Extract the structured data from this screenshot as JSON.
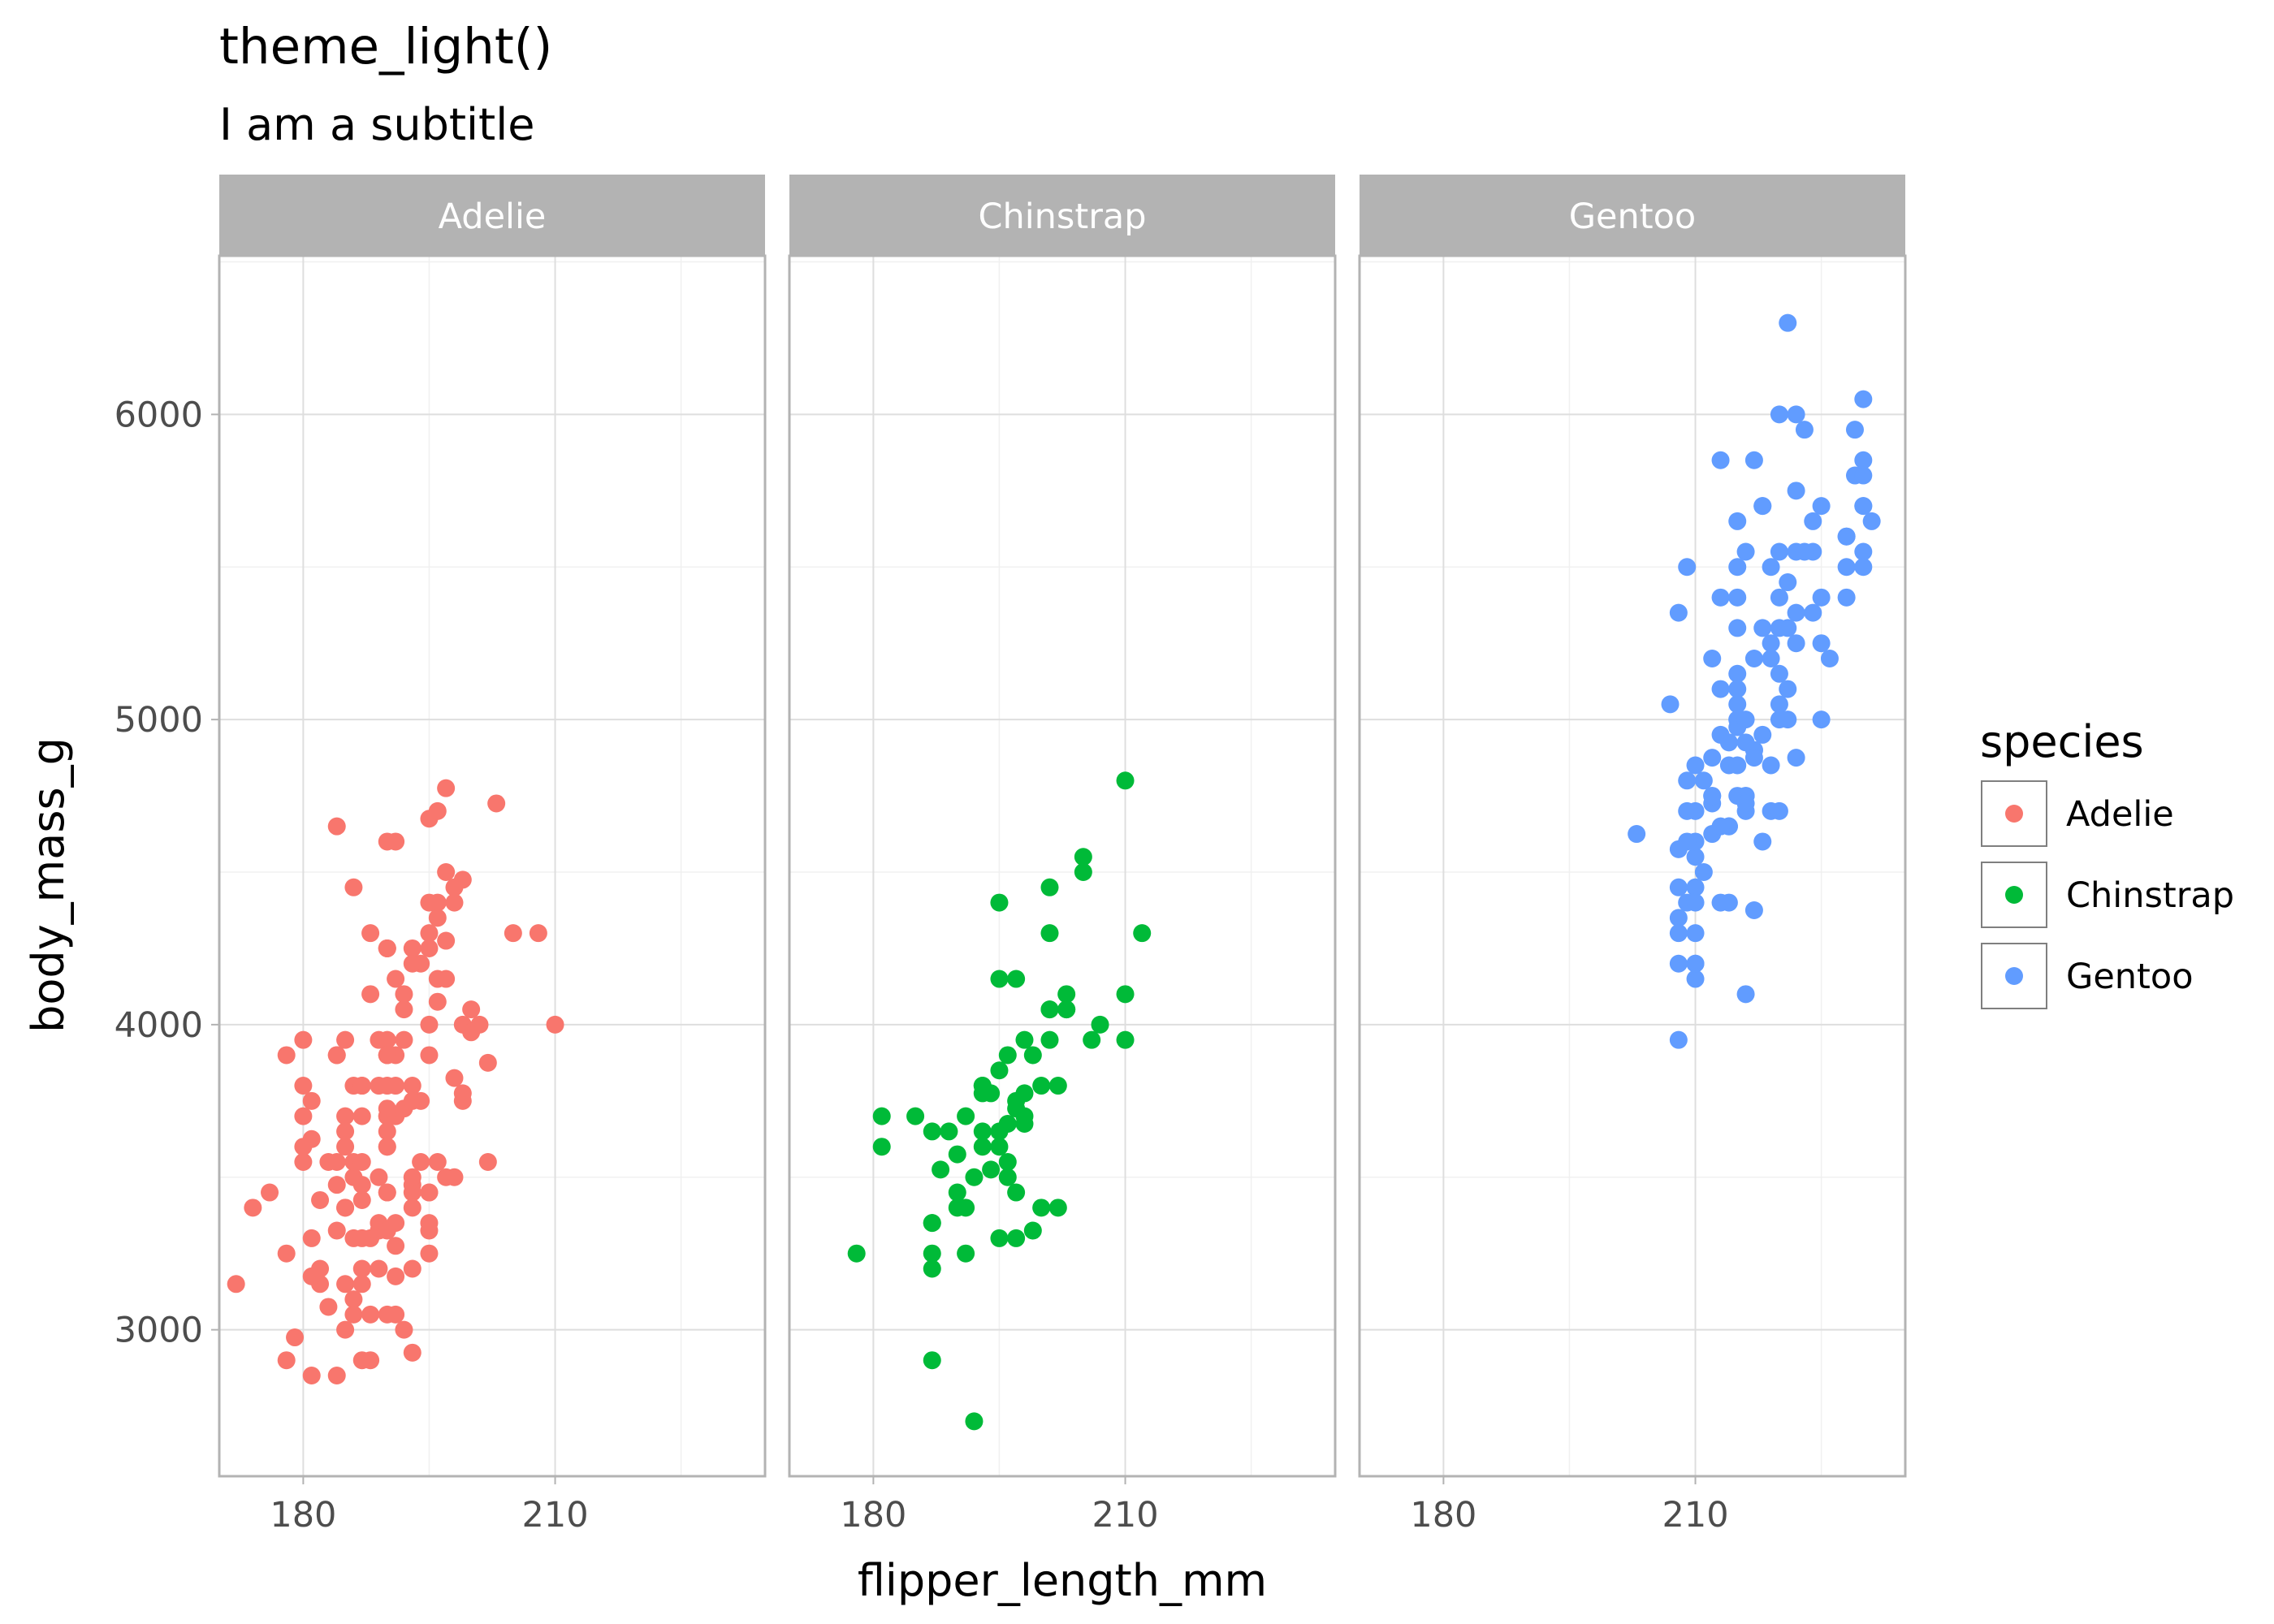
{
  "chart_data": {
    "type": "scatter",
    "title": "theme_light()",
    "subtitle": "I am a subtitle",
    "xlabel": "flipper_length_mm",
    "ylabel": "body_mass_g",
    "xlim": [
      170,
      235
    ],
    "ylim": [
      2520,
      6520
    ],
    "x_ticks": [
      180,
      210
    ],
    "y_ticks": [
      3000,
      4000,
      5000,
      6000
    ],
    "grid": true,
    "legend": {
      "title": "species",
      "position": "right",
      "entries": [
        "Adelie",
        "Chinstrap",
        "Gentoo"
      ]
    },
    "facets": [
      {
        "name": "Adelie",
        "color": "#F8766D",
        "x": [
          181,
          186,
          195,
          193,
          190,
          181,
          195,
          193,
          190,
          186,
          180,
          182,
          191,
          198,
          185,
          195,
          197,
          184,
          194,
          174,
          180,
          189,
          185,
          180,
          187,
          183,
          187,
          172,
          180,
          178,
          178,
          188,
          184,
          195,
          196,
          190,
          180,
          181,
          184,
          182,
          195,
          186,
          196,
          185,
          190,
          182,
          179,
          190,
          191,
          186,
          188,
          190,
          200,
          187,
          191,
          186,
          193,
          181,
          194,
          185,
          195,
          185,
          192,
          184,
          192,
          195,
          188,
          190,
          198,
          190,
          190,
          196,
          197,
          190,
          195,
          191,
          184,
          187,
          195,
          189,
          196,
          187,
          193,
          191,
          194,
          190,
          189,
          189,
          190,
          202,
          205,
          185,
          186,
          187,
          208,
          190,
          196,
          178,
          192,
          192,
          203,
          183,
          190,
          193,
          184,
          199,
          190,
          181,
          197,
          198,
          191,
          193,
          197,
          191,
          196,
          188,
          199,
          189,
          189,
          187,
          198,
          176,
          202,
          186,
          199,
          191,
          195,
          191,
          210,
          190,
          197,
          193,
          199,
          187,
          190,
          191,
          200,
          185,
          193,
          193,
          187,
          188,
          190,
          192,
          185,
          190,
          184,
          195,
          193,
          187,
          201
        ],
        "y": [
          3750,
          3800,
          3250,
          3450,
          3650,
          3625,
          4675,
          3475,
          4250,
          3300,
          3700,
          3200,
          3800,
          4400,
          3700,
          3450,
          4500,
          3325,
          4200,
          3400,
          3600,
          3800,
          3950,
          3800,
          3800,
          3550,
          3200,
          3150,
          3950,
          3250,
          3900,
          3300,
          3900,
          3325,
          4150,
          3950,
          3550,
          3300,
          4650,
          3150,
          3900,
          3100,
          4400,
          3000,
          4600,
          3425,
          2975,
          3450,
          4150,
          3500,
          4300,
          3450,
          4050,
          2900,
          3700,
          3550,
          3800,
          2850,
          3750,
          3150,
          4400,
          3600,
          4050,
          2850,
          3950,
          3350,
          4100,
          3050,
          4450,
          3600,
          3900,
          3550,
          4150,
          3700,
          4250,
          3700,
          3900,
          3550,
          4000,
          3200,
          4700,
          3800,
          4200,
          3350,
          3550,
          3800,
          3500,
          3950,
          3600,
          3550,
          4300,
          3400,
          4450,
          3300,
          4300,
          3700,
          4350,
          2900,
          4100,
          3725,
          4725,
          3075,
          4250,
          2925,
          3550,
          3750,
          3900,
          3175,
          4775,
          3825,
          4600,
          3200,
          4275,
          3900,
          4075,
          2900,
          3775,
          3350,
          3325,
          3150,
          3500,
          3450,
          3875,
          3050,
          4000,
          3275,
          4300,
          3050,
          4000,
          3325,
          3500,
          3500,
          4475,
          3425,
          3900,
          3175,
          3975,
          3400,
          4250,
          3400,
          3475,
          3050,
          3725,
          3000,
          3650,
          4250,
          3475,
          3450,
          3750,
          3700,
          4000
        ]
      },
      {
        "name": "Chinstrap",
        "color": "#00BA38",
        "x": [
          192,
          196,
          193,
          188,
          197,
          198,
          178,
          197,
          195,
          198,
          193,
          194,
          185,
          201,
          190,
          201,
          197,
          181,
          190,
          195,
          181,
          191,
          187,
          193,
          195,
          197,
          200,
          200,
          191,
          205,
          187,
          201,
          187,
          203,
          195,
          199,
          195,
          210,
          192,
          205,
          210,
          187,
          196,
          196,
          196,
          201,
          190,
          212,
          187,
          198,
          199,
          201,
          193,
          203,
          187,
          197,
          191,
          203,
          202,
          194,
          206,
          189,
          195,
          207,
          202,
          193,
          210,
          198
        ],
        "y": [
          3500,
          3900,
          3650,
          3525,
          3725,
          3950,
          3250,
          3750,
          4150,
          3700,
          3800,
          3775,
          3700,
          4050,
          3575,
          4050,
          3300,
          3700,
          3450,
          4400,
          3600,
          3400,
          2900,
          3800,
          3300,
          4150,
          3400,
          3800,
          3700,
          4550,
          3200,
          4300,
          3350,
          4100,
          3600,
          3900,
          3850,
          4800,
          2700,
          4500,
          3950,
          3650,
          3550,
          3500,
          3675,
          4450,
          3400,
          4300,
          3250,
          3675,
          3325,
          3950,
          3600,
          4050,
          3350,
          3450,
          3250,
          4050,
          3800,
          3525,
          3950,
          3650,
          3650,
          4000,
          3400,
          3775,
          4100,
          3775
        ]
      },
      {
        "name": "Gentoo",
        "color": "#619CFF",
        "x": [
          211,
          230,
          210,
          218,
          215,
          210,
          211,
          219,
          209,
          215,
          214,
          216,
          214,
          213,
          210,
          217,
          210,
          221,
          209,
          222,
          218,
          215,
          213,
          215,
          215,
          215,
          216,
          215,
          210,
          220,
          222,
          209,
          207,
          230,
          220,
          220,
          213,
          219,
          208,
          208,
          208,
          225,
          210,
          216,
          222,
          217,
          210,
          225,
          213,
          215,
          210,
          220,
          210,
          225,
          217,
          220,
          208,
          220,
          208,
          224,
          208,
          221,
          214,
          231,
          219,
          230,
          214,
          229,
          220,
          223,
          216,
          221,
          221,
          217,
          216,
          230,
          209,
          220,
          215,
          223,
          212,
          221,
          212,
          224,
          212,
          228,
          218,
          218,
          212,
          230,
          218,
          228,
          212,
          224,
          214,
          226,
          216,
          222,
          203,
          225,
          219,
          228,
          215,
          228,
          216,
          215,
          210,
          219,
          208,
          209,
          216,
          229,
          213,
          230,
          217,
          230,
          217,
          222,
          214,
          215,
          222,
          212,
          213
        ],
        "y": [
          4500,
          5700,
          4450,
          5700,
          5400,
          4550,
          4800,
          5200,
          4400,
          5150,
          4650,
          5550,
          4650,
          5850,
          4200,
          5850,
          4150,
          6300,
          4800,
          5350,
          5700,
          5000,
          4400,
          5050,
          5000,
          5100,
          4100,
          5650,
          4600,
          5550,
          5250,
          4700,
          5050,
          6050,
          5150,
          5400,
          4950,
          5250,
          4350,
          5350,
          3950,
          5700,
          4300,
          4750,
          5550,
          4900,
          4200,
          5400,
          5100,
          5300,
          4850,
          5300,
          4400,
          5000,
          4900,
          5050,
          4300,
          5000,
          4450,
          5550,
          4200,
          5300,
          4400,
          5650,
          4700,
          5700,
          4650,
          5800,
          4700,
          5550,
          4750,
          5000,
          5100,
          5200,
          4700,
          5800,
          4600,
          6000,
          4750,
          5950,
          4625,
          5450,
          4725,
          5350,
          4750,
          5600,
          4600,
          5300,
          4875,
          5550,
          4950,
          5400,
          4750,
          5650,
          4850,
          5200,
          4925,
          4875,
          4625,
          5250,
          4850,
          5600,
          4975,
          5500,
          4725,
          5500,
          4700,
          5500,
          4575,
          5500,
          5000,
          5950,
          4650,
          5500,
          4375,
          5850,
          4875,
          6000,
          4925,
          4850,
          5750,
          5200,
          5400
        ]
      }
    ]
  }
}
